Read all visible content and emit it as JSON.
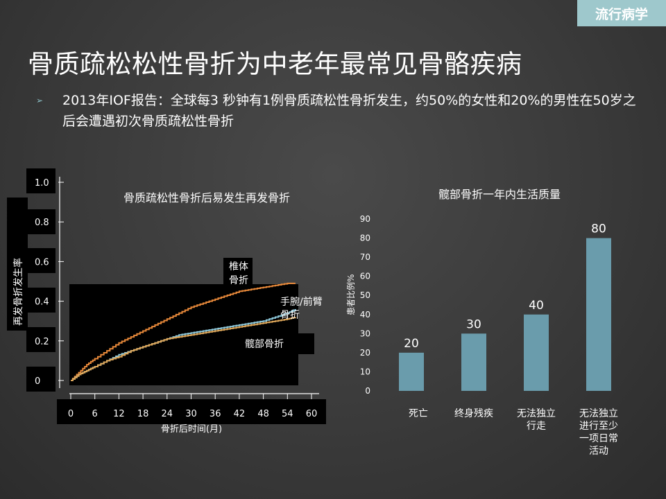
{
  "header": {
    "tag": "流行病学",
    "title": "骨质疏松松性骨折为中老年最常见骨骼疾病",
    "bullet": "2013年IOF报告：全球每3 秒钟有1例骨质疏松性骨折发生，约50%的女性和20%的男性在50岁之后会遭遇初次骨质疏松性骨折"
  },
  "chart_data": [
    {
      "type": "line",
      "title": "骨质疏松性骨折后易发生再发骨折",
      "xlabel": "骨折后时间(月)",
      "ylabel": "再发骨折发生率",
      "x_ticks": [
        "0",
        "6",
        "12",
        "18",
        "24",
        "30",
        "36",
        "42",
        "48",
        "54",
        "60"
      ],
      "y_ticks": [
        "1.0",
        "0.8",
        "0.6",
        "0.4",
        "0.2",
        "0"
      ],
      "xlim": [
        0,
        60
      ],
      "ylim": [
        0,
        1.0
      ],
      "series": [
        {
          "name": "椎体骨折",
          "color": "#e8893a",
          "x": [
            0,
            2,
            4,
            6,
            9,
            12,
            15,
            18,
            21,
            24,
            27,
            30,
            33,
            36,
            39,
            42,
            45,
            48,
            51,
            54,
            56
          ],
          "y": [
            0,
            0.04,
            0.08,
            0.11,
            0.15,
            0.19,
            0.22,
            0.25,
            0.28,
            0.31,
            0.34,
            0.37,
            0.39,
            0.41,
            0.43,
            0.45,
            0.46,
            0.47,
            0.48,
            0.49,
            0.49
          ]
        },
        {
          "name": "手腕/前臂骨折",
          "color": "#8ec9dc",
          "x": [
            0,
            2,
            4,
            6,
            9,
            12,
            15,
            18,
            21,
            24,
            27,
            30,
            33,
            36,
            39,
            42,
            45,
            48,
            51,
            54,
            56
          ],
          "y": [
            0,
            0.03,
            0.05,
            0.07,
            0.1,
            0.13,
            0.15,
            0.17,
            0.19,
            0.21,
            0.23,
            0.24,
            0.25,
            0.26,
            0.27,
            0.28,
            0.29,
            0.3,
            0.32,
            0.34,
            0.36
          ]
        },
        {
          "name": "髋部骨折",
          "color": "#e0a85a",
          "x": [
            0,
            2,
            4,
            6,
            9,
            12,
            15,
            18,
            21,
            24,
            27,
            30,
            33,
            36,
            39,
            42,
            45,
            48,
            51,
            54,
            56
          ],
          "y": [
            0,
            0.03,
            0.05,
            0.07,
            0.1,
            0.12,
            0.15,
            0.17,
            0.19,
            0.21,
            0.22,
            0.23,
            0.24,
            0.25,
            0.26,
            0.27,
            0.28,
            0.29,
            0.3,
            0.31,
            0.32
          ]
        }
      ]
    },
    {
      "type": "bar",
      "title": "髋部骨折一年内生活质量",
      "ylabel": "患者比例%",
      "categories": [
        "死亡",
        "终身残疾",
        "无法独立行走",
        "无法独立进行至少一项日常活动"
      ],
      "category_lines": [
        [
          "死亡"
        ],
        [
          "终身残疾"
        ],
        [
          "无法独立",
          "行走"
        ],
        [
          "无法独立",
          "进行至少",
          "一项日常",
          "活动"
        ]
      ],
      "values": [
        20,
        30,
        40,
        80
      ],
      "ylim": [
        0,
        90
      ],
      "y_ticks": [
        0,
        10,
        20,
        30,
        40,
        50,
        60,
        70,
        80,
        90
      ],
      "color": "#6a9cac"
    }
  ]
}
